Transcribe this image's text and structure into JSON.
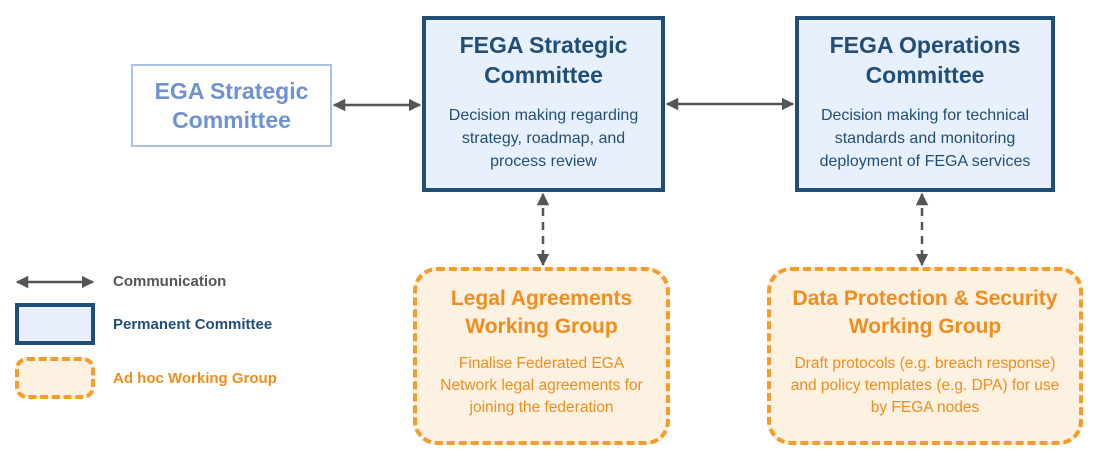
{
  "colors": {
    "permanent_border": "#1f4e79",
    "permanent_fill": "#e8f0fe",
    "adhoc_border": "#f59c2a",
    "adhoc_fill": "#fdf1e2",
    "adhoc_text": "#f28d1c",
    "ega_text": "#6f93cf",
    "ega_border": "#a9c2e6",
    "arrow": "#555555"
  },
  "nodes": {
    "ega_strategic": {
      "title": "EGA Strategic Committee"
    },
    "fega_strategic": {
      "title": "FEGA Strategic Committee",
      "description": "Decision making regarding strategy, roadmap, and process review"
    },
    "fega_operations": {
      "title": "FEGA Operations Committee",
      "description": "Decision making for technical standards and monitoring deployment of FEGA services"
    },
    "legal_wg": {
      "title": "Legal Agreements Working Group",
      "description": "Finalise Federated EGA Network legal agreements for joining the federation"
    },
    "data_protection_wg": {
      "title": "Data Protection & Security Working Group",
      "description": "Draft protocols (e.g. breach response) and policy templates (e.g. DPA) for use by FEGA nodes"
    }
  },
  "edges": [
    {
      "from": "ega_strategic",
      "to": "fega_strategic",
      "style": "solid"
    },
    {
      "from": "fega_strategic",
      "to": "fega_operations",
      "style": "solid"
    },
    {
      "from": "fega_strategic",
      "to": "legal_wg",
      "style": "dashed"
    },
    {
      "from": "fega_operations",
      "to": "data_protection_wg",
      "style": "dashed"
    }
  ],
  "legend": {
    "communication": "Communication",
    "permanent": "Permanent Committee",
    "adhoc": "Ad hoc Working Group"
  }
}
